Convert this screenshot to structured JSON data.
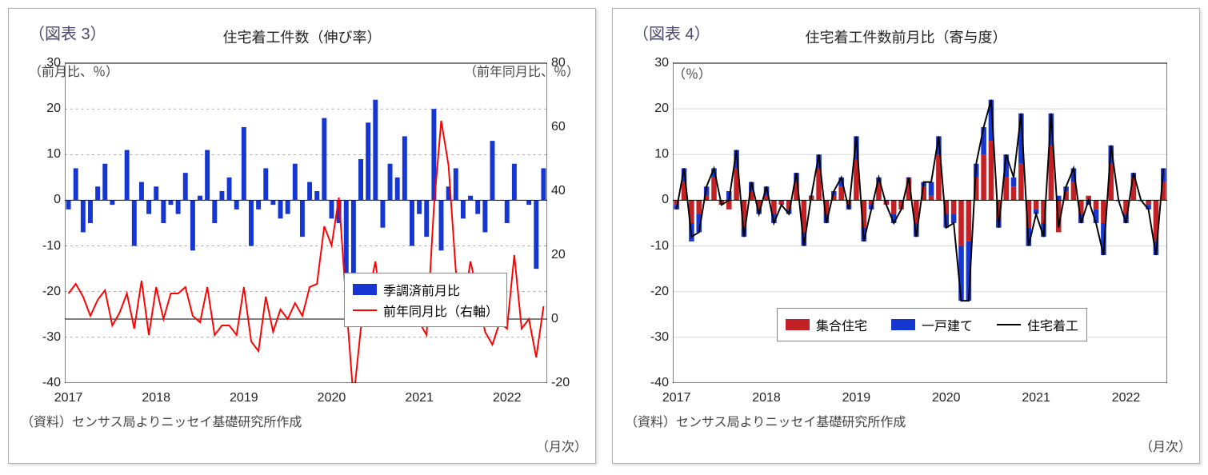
{
  "figure3": {
    "label": "（図表 3）",
    "title": "住宅着工件数（伸び率）",
    "y_left_label": "（前月比、％）",
    "y_right_label": "（前年同月比、％）",
    "x_unit": "（月次）",
    "source": "（資料）センサス局よりニッセイ基礎研究所作成",
    "type": "combo-bar-line",
    "left_axis": {
      "min": -40,
      "max": 30,
      "step": 10
    },
    "right_axis": {
      "min": -20,
      "max": 80,
      "step": 20
    },
    "x_years": [
      2017,
      2018,
      2019,
      2020,
      2021,
      2022
    ],
    "x_count": 66,
    "legend": {
      "bar": "季調済前月比",
      "line": "前年同月比（右軸）"
    },
    "colors": {
      "bar_fill": "#1536d1",
      "line": "#ff0000",
      "axis": "#000000",
      "dash": "#7a7a7a",
      "bg": "#ffffff"
    },
    "bar_width": 0.65,
    "bars_mom": [
      -2,
      7,
      -7,
      -5,
      3,
      8,
      -1,
      0,
      11,
      -10,
      4,
      -3,
      3,
      -5,
      -1,
      -3,
      6,
      -11,
      1,
      11,
      -5,
      2,
      5,
      -2,
      16,
      -10,
      -2,
      7,
      -1,
      -4,
      -3,
      8,
      -8,
      4,
      2,
      18,
      -4,
      -5,
      -17,
      -16,
      9,
      17,
      22,
      -6,
      8,
      5,
      14,
      -10,
      -3,
      -8,
      20,
      -11,
      3,
      7,
      -4,
      1,
      -3,
      -7,
      13,
      0,
      -5,
      8,
      0,
      -1,
      -15,
      7
    ],
    "line_yoy": [
      8,
      11,
      7,
      1,
      6,
      9,
      -2,
      2,
      8,
      -3,
      12,
      -5,
      10,
      0,
      8,
      8,
      10,
      1,
      -1,
      10,
      -5,
      -2,
      -2,
      -5,
      10,
      -7,
      -10,
      7,
      -4,
      3,
      0,
      5,
      1,
      10,
      11,
      29,
      23,
      38,
      5,
      -25,
      -3,
      7,
      18,
      -2,
      10,
      13,
      11,
      -2,
      -1,
      -5,
      35,
      62,
      48,
      15,
      3,
      18,
      8,
      -4,
      -8,
      -1,
      -3,
      20,
      -3,
      0,
      -12,
      4
    ]
  },
  "figure4": {
    "label": "（図表 4）",
    "title": "住宅着工件数前月比（寄与度）",
    "y_label": "（％）",
    "x_unit": "（月次）",
    "source": "（資料）センサス局よりニッセイ基礎研究所作成",
    "type": "stacked-bar-line",
    "y_axis": {
      "min": -40,
      "max": 30,
      "step": 10
    },
    "x_years": [
      2017,
      2018,
      2019,
      2020,
      2021,
      2022
    ],
    "x_count": 66,
    "legend": {
      "multi": "集合住宅",
      "single": "一戸建て",
      "total": "住宅着工"
    },
    "colors": {
      "multi": "#c42127",
      "single": "#1536d1",
      "total_line": "#000000",
      "axis": "#000000",
      "grid": "#d8d8d8",
      "bg": "#ffffff"
    },
    "bar_width": 0.7,
    "multi": [
      -1,
      4,
      -5,
      -3,
      1,
      5,
      -1,
      -2,
      7,
      -6,
      2,
      -2,
      1,
      -3,
      -1,
      -2,
      4,
      -7,
      1,
      7,
      -3,
      1,
      3,
      -1,
      9,
      -6,
      -1,
      4,
      -1,
      -3,
      -2,
      5,
      -5,
      3,
      1,
      10,
      -3,
      -3,
      -10,
      -9,
      5,
      10,
      13,
      -4,
      5,
      3,
      8,
      -6,
      -2,
      -5,
      12,
      -7,
      2,
      4,
      -3,
      1,
      -2,
      -5,
      8,
      0,
      -3,
      5,
      0,
      -1,
      -9,
      4
    ],
    "single": [
      -1,
      3,
      -4,
      -4,
      2,
      2,
      0,
      2,
      4,
      -2,
      2,
      -1,
      2,
      -2,
      0,
      -1,
      2,
      -3,
      0,
      3,
      -2,
      1,
      2,
      -1,
      5,
      -3,
      -1,
      1,
      0,
      -2,
      0,
      0,
      -3,
      1,
      3,
      4,
      -3,
      -2,
      -12,
      -13,
      3,
      6,
      9,
      -2,
      5,
      2,
      11,
      -4,
      -1,
      -3,
      7,
      1,
      1,
      3,
      -2,
      -1,
      -3,
      -7,
      4,
      0,
      -2,
      1,
      0,
      -1,
      -3,
      3
    ],
    "total": [
      -2,
      7,
      -8,
      -7,
      3,
      7,
      -1,
      0,
      11,
      -8,
      4,
      -3,
      3,
      -5,
      -1,
      -3,
      6,
      -10,
      1,
      10,
      -5,
      2,
      5,
      -2,
      14,
      -9,
      -2,
      5,
      -1,
      -5,
      -2,
      5,
      -8,
      4,
      4,
      14,
      -6,
      -5,
      -22,
      -22,
      8,
      16,
      22,
      -6,
      10,
      5,
      19,
      -10,
      -3,
      -8,
      19,
      -6,
      3,
      7,
      -5,
      0,
      -5,
      -12,
      12,
      0,
      -5,
      6,
      0,
      -2,
      -12,
      7
    ]
  }
}
